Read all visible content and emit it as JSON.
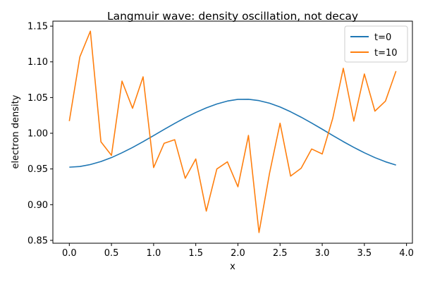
{
  "chart_data": {
    "type": "line",
    "title": "Langmuir wave: density oscillation, not decay",
    "xlabel": "x",
    "ylabel": "electron density",
    "xlim": [
      -0.195,
      4.07
    ],
    "ylim": [
      0.846,
      1.157
    ],
    "x_ticks": [
      0.0,
      0.5,
      1.0,
      1.5,
      2.0,
      2.5,
      3.0,
      3.5,
      4.0
    ],
    "x_tick_labels": [
      "0.0",
      "0.5",
      "1.0",
      "1.5",
      "2.0",
      "2.5",
      "3.0",
      "3.5",
      "4.0"
    ],
    "y_ticks": [
      0.85,
      0.9,
      0.95,
      1.0,
      1.05,
      1.1,
      1.15
    ],
    "y_tick_labels": [
      "0.85",
      "0.90",
      "0.95",
      "1.00",
      "1.05",
      "1.10",
      "1.15"
    ],
    "grid": false,
    "legend_position": "top-right",
    "x": [
      0.0,
      0.125,
      0.25,
      0.375,
      0.5,
      0.625,
      0.75,
      0.875,
      1.0,
      1.125,
      1.25,
      1.375,
      1.5,
      1.625,
      1.75,
      1.875,
      2.0,
      2.125,
      2.25,
      2.375,
      2.5,
      2.625,
      2.75,
      2.875,
      3.0,
      3.125,
      3.25,
      3.375,
      3.5,
      3.625,
      3.75,
      3.875
    ],
    "series": [
      {
        "name": "t=0",
        "color": "#1f77b4",
        "values": [
          0.9525,
          0.9534,
          0.9562,
          0.9604,
          0.9659,
          0.9727,
          0.9801,
          0.9882,
          0.9968,
          1.0054,
          1.0138,
          1.0218,
          1.0291,
          1.0356,
          1.041,
          1.0451,
          1.0475,
          1.0476,
          1.0457,
          1.0421,
          1.0368,
          1.0301,
          1.0225,
          1.0143,
          1.0057,
          0.9969,
          0.9883,
          0.9802,
          0.9727,
          0.9659,
          0.9601,
          0.9555
        ]
      },
      {
        "name": "t=10",
        "color": "#ff7f0e",
        "values": [
          1.017,
          1.107,
          1.143,
          0.988,
          0.969,
          1.073,
          1.035,
          1.079,
          0.952,
          0.986,
          0.991,
          0.937,
          0.964,
          0.891,
          0.95,
          0.96,
          0.925,
          0.997,
          0.861,
          0.944,
          1.014,
          0.94,
          0.951,
          0.978,
          0.971,
          1.021,
          1.091,
          1.017,
          1.083,
          1.031,
          1.045,
          1.087
        ]
      }
    ]
  }
}
